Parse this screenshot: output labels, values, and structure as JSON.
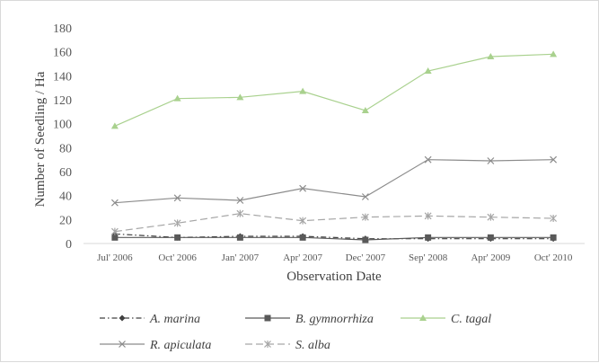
{
  "chart_data": {
    "type": "line",
    "title": "",
    "xlabel": "Observation Date",
    "ylabel": "Number of Seedling / Ha",
    "ylim": [
      0,
      180
    ],
    "yticks": [
      0,
      20,
      40,
      60,
      80,
      100,
      120,
      140,
      160,
      180
    ],
    "categories": [
      "Jul' 2006",
      "Oct' 2006",
      "Jan' 2007",
      "Apr' 2007",
      "Dec' 2007",
      "Sep' 2008",
      "Apr' 2009",
      "Oct' 2010"
    ],
    "grid": false,
    "legend": "bottom",
    "series": [
      {
        "name": "A. marina",
        "values": [
          8,
          5,
          6,
          6,
          4,
          4,
          4,
          4
        ],
        "color": "#404040",
        "marker": "diamond",
        "dash": "dashdot"
      },
      {
        "name": "B. gymnorrhiza",
        "values": [
          5,
          5,
          5,
          5,
          3,
          5,
          5,
          5
        ],
        "color": "#595959",
        "marker": "square",
        "dash": "solid"
      },
      {
        "name": "C. tagal",
        "values": [
          98,
          121,
          122,
          127,
          111,
          144,
          156,
          158
        ],
        "color": "#a9d18e",
        "marker": "triangle",
        "dash": "solid"
      },
      {
        "name": "R. apiculata",
        "values": [
          34,
          38,
          36,
          46,
          39,
          70,
          69,
          70
        ],
        "color": "#8c8c8c",
        "marker": "x",
        "dash": "solid"
      },
      {
        "name": "S. alba",
        "values": [
          10,
          17,
          25,
          19,
          22,
          23,
          22,
          21
        ],
        "color": "#a6a6a6",
        "marker": "star",
        "dash": "longdash"
      }
    ]
  }
}
